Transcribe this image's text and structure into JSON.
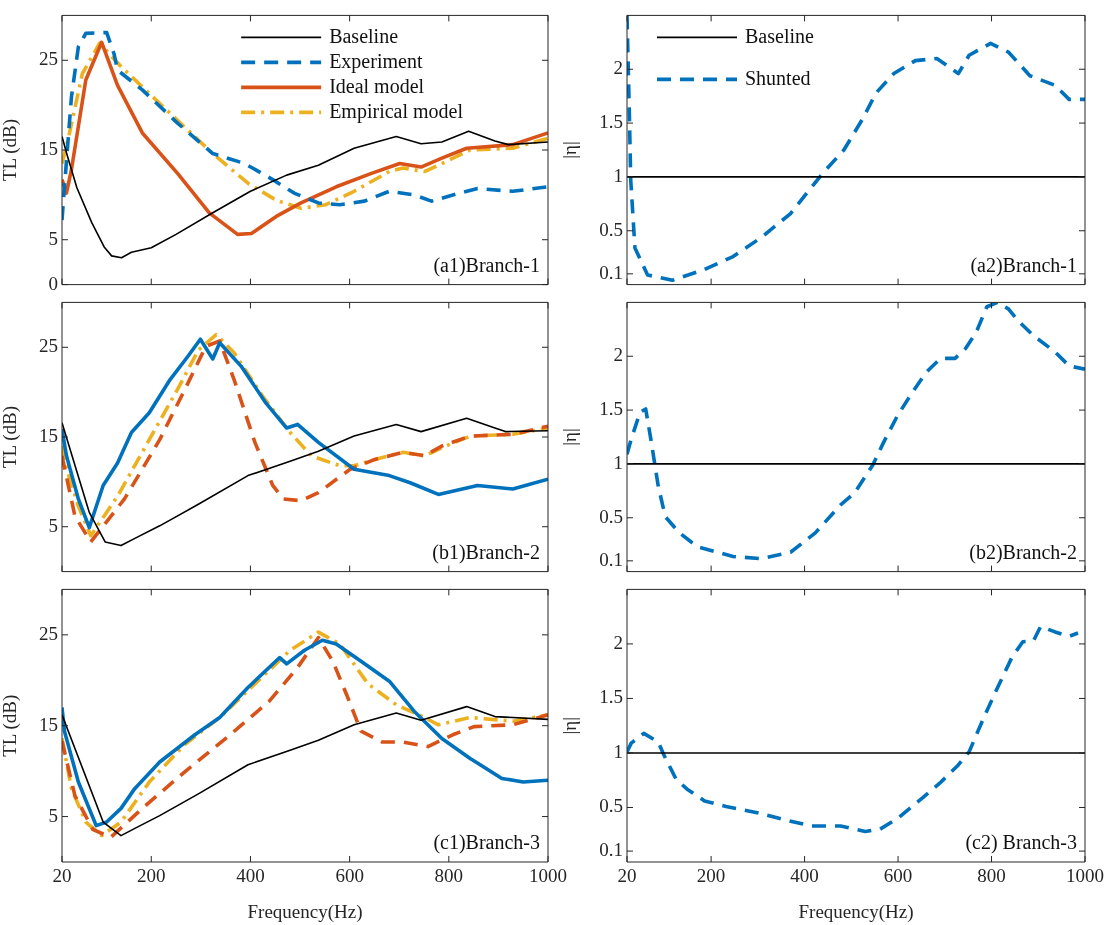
{
  "chart_data": [
    {
      "type": "line",
      "ylabel": "TL (dB)",
      "xlim": [
        20,
        1000
      ],
      "xticks": [
        20,
        200,
        400,
        600,
        800,
        1000
      ],
      "ylim": [
        0,
        30
      ],
      "yticks": [
        0,
        5,
        15,
        25
      ],
      "tick_labels": "y",
      "legend": "top right",
      "annotations": [
        "(a1)Branch-1"
      ],
      "series": [
        {
          "name": "Baseline",
          "color": "#000000",
          "line_style": "solid",
          "x": [
            20,
            30,
            50,
            80,
            105,
            120,
            140,
            160,
            200,
            250,
            324,
            400,
            473,
            537,
            609,
            694,
            744,
            786,
            840,
            893,
            920,
            1000
          ],
          "values": [
            16.5,
            14.5,
            10.8,
            6.9,
            4.2,
            3.2,
            3.0,
            3.6,
            4.1,
            5.6,
            8.0,
            10.4,
            12.2,
            13.3,
            15.2,
            16.5,
            15.7,
            15.9,
            17.1,
            16.0,
            15.6,
            15.9
          ]
        },
        {
          "name": "Experiment",
          "color": "#0072bd",
          "line_style": "dashed",
          "x": [
            20,
            25,
            39,
            53,
            68,
            110,
            125,
            132,
            182,
            253,
            324,
            388,
            445,
            488,
            537,
            580,
            630,
            680,
            730,
            765,
            822,
            858,
            929,
            1000
          ],
          "values": [
            7.2,
            10.9,
            20.9,
            26.5,
            28.0,
            28.1,
            25.7,
            23.9,
            21.7,
            18.0,
            14.6,
            13.5,
            11.7,
            10.2,
            9.1,
            8.9,
            9.3,
            10.4,
            10.0,
            9.3,
            10.2,
            10.7,
            10.4,
            10.9
          ]
        },
        {
          "name": "Ideal model",
          "color": "#d95319",
          "line_style": "solid",
          "x": [
            20,
            29,
            39,
            68,
            100,
            132,
            182,
            253,
            317,
            374,
            402,
            452,
            502,
            573,
            644,
            701,
            744,
            786,
            836,
            929,
            1000
          ],
          "values": [
            11.7,
            10.2,
            12.8,
            22.8,
            27.0,
            22.2,
            16.9,
            12.4,
            8.0,
            5.6,
            5.7,
            7.6,
            9.1,
            10.9,
            12.4,
            13.5,
            13.1,
            14.1,
            15.2,
            15.6,
            16.9
          ]
        },
        {
          "name": "Empirical model",
          "color": "#edb120",
          "line_style": "dashdot",
          "x": [
            20,
            32,
            61,
            96,
            139,
            196,
            253,
            324,
            395,
            452,
            502,
            552,
            609,
            680,
            708,
            751,
            794,
            843,
            929,
            1000
          ],
          "values": [
            13.5,
            16.1,
            23.5,
            26.9,
            24.3,
            21.3,
            18.3,
            14.6,
            11.3,
            9.4,
            8.5,
            8.9,
            10.4,
            12.6,
            13.0,
            12.6,
            13.7,
            15.0,
            15.2,
            16.3
          ]
        }
      ]
    },
    {
      "type": "line",
      "ylabel": "|η|",
      "xlim": [
        20,
        1000
      ],
      "xticks": [
        20,
        200,
        400,
        600,
        800,
        1000
      ],
      "ylim": [
        0,
        2.5
      ],
      "yticks": [
        0.1,
        0.5,
        1,
        1.5,
        2
      ],
      "tick_labels": "y",
      "legend": "top left",
      "annotations": [
        "(a2)Branch-1"
      ],
      "series": [
        {
          "name": "Baseline",
          "color": "#000000",
          "line_style": "solid",
          "x": [
            20,
            1000
          ],
          "values": [
            1,
            1
          ]
        },
        {
          "name": "Shunted",
          "color": "#0072bd",
          "line_style": "dashed",
          "x": [
            20,
            25,
            28,
            37,
            64,
            117,
            186,
            247,
            308,
            370,
            438,
            484,
            523,
            553,
            591,
            637,
            683,
            729,
            752,
            798,
            836,
            882,
            936,
            966,
            1000
          ],
          "values": [
            2.5,
            1.6,
            0.97,
            0.34,
            0.09,
            0.04,
            0.14,
            0.26,
            0.44,
            0.66,
            1.03,
            1.25,
            1.53,
            1.78,
            1.96,
            2.08,
            2.1,
            1.96,
            2.13,
            2.24,
            2.16,
            1.94,
            1.85,
            1.72,
            1.72
          ]
        }
      ]
    },
    {
      "type": "line",
      "ylabel": "TL (dB)",
      "xlim": [
        20,
        1000
      ],
      "xticks": [
        20,
        200,
        400,
        600,
        800,
        1000
      ],
      "ylim": [
        0,
        30
      ],
      "yticks": [
        5,
        15,
        25
      ],
      "tick_labels": "y",
      "annotations": [
        "(b1)Branch-2"
      ],
      "series": [
        {
          "color": "#000000",
          "line_style": "solid",
          "x": [
            20,
            75,
            107,
            139,
            167,
            217,
            295,
            395,
            480,
            537,
            609,
            694,
            744,
            836,
            893,
            914,
            1000
          ],
          "values": [
            16.6,
            6.6,
            3.3,
            2.9,
            3.7,
            5.1,
            7.5,
            10.7,
            12.3,
            13.4,
            15.1,
            16.4,
            15.6,
            17.1,
            16.0,
            15.6,
            15.7
          ]
        },
        {
          "color": "#0072bd",
          "line_style": "solid",
          "x": [
            20,
            29,
            53,
            75,
            103,
            132,
            160,
            196,
            238,
            274,
            299,
            324,
            338,
            381,
            431,
            473,
            495,
            537,
            609,
            680,
            722,
            779,
            858,
            929,
            1000
          ],
          "values": [
            15.9,
            12.9,
            8.1,
            4.9,
            9.6,
            12.1,
            15.5,
            17.7,
            21.4,
            24.0,
            25.9,
            23.7,
            25.5,
            22.9,
            18.8,
            16.0,
            16.4,
            14.4,
            11.4,
            10.7,
            9.9,
            8.6,
            9.6,
            9.2,
            10.3
          ]
        },
        {
          "color": "#d95319",
          "line_style": "dashed",
          "x": [
            20,
            46,
            78,
            146,
            217,
            274,
            310,
            338,
            367,
            409,
            445,
            466,
            502,
            537,
            601,
            651,
            708,
            751,
            786,
            843,
            929,
            1000
          ],
          "values": [
            12.9,
            6.2,
            3.3,
            8.1,
            14.7,
            21.0,
            25.1,
            25.7,
            21.4,
            14.4,
            9.6,
            8.1,
            7.9,
            8.8,
            11.4,
            12.5,
            13.3,
            12.9,
            14.0,
            15.1,
            15.3,
            16.2
          ]
        },
        {
          "color": "#edb120",
          "line_style": "dashdot",
          "x": [
            20,
            32,
            53,
            78,
            132,
            196,
            253,
            295,
            331,
            367,
            424,
            480,
            523,
            580,
            609,
            651,
            708,
            751,
            794,
            843,
            929,
            1000
          ],
          "values": [
            14.0,
            11.0,
            7.3,
            4.0,
            8.4,
            14.7,
            20.3,
            24.7,
            26.4,
            24.4,
            19.6,
            15.5,
            12.9,
            11.8,
            11.8,
            12.5,
            13.3,
            12.9,
            14.0,
            15.1,
            15.3,
            16.0
          ]
        }
      ]
    },
    {
      "type": "line",
      "ylabel": "|η|",
      "xlim": [
        20,
        1000
      ],
      "xticks": [
        20,
        200,
        400,
        600,
        800,
        1000
      ],
      "ylim": [
        0,
        2.5
      ],
      "yticks": [
        0.1,
        0.5,
        1,
        1.5,
        2
      ],
      "tick_labels": "y",
      "annotations": [
        "(b2)Branch-2"
      ],
      "series": [
        {
          "color": "#000000",
          "line_style": "solid",
          "x": [
            20,
            1000
          ],
          "values": [
            1,
            1
          ]
        },
        {
          "color": "#0072bd",
          "line_style": "dashed",
          "x": [
            20,
            29,
            48,
            60,
            71,
            87,
            102,
            132,
            171,
            247,
            308,
            370,
            423,
            477,
            507,
            546,
            569,
            599,
            630,
            660,
            691,
            722,
            744,
            767,
            790,
            813,
            836,
            859,
            890,
            936,
            966,
            1000
          ],
          "values": [
            1.09,
            1.23,
            1.48,
            1.51,
            1.23,
            0.79,
            0.51,
            0.36,
            0.23,
            0.14,
            0.12,
            0.18,
            0.36,
            0.62,
            0.73,
            0.99,
            1.2,
            1.45,
            1.66,
            1.85,
            1.98,
            1.98,
            2.07,
            2.22,
            2.46,
            2.5,
            2.44,
            2.32,
            2.19,
            2.04,
            1.91,
            1.88
          ]
        }
      ]
    },
    {
      "type": "line",
      "xlabel": "Frequency(Hz)",
      "ylabel": "TL (dB)",
      "xlim": [
        20,
        1000
      ],
      "xticks": [
        20,
        200,
        400,
        600,
        800,
        1000
      ],
      "ylim": [
        0,
        30
      ],
      "yticks": [
        5,
        15,
        25
      ],
      "annotations": [
        "(c1)Branch-3"
      ],
      "series": [
        {
          "color": "#000000",
          "line_style": "solid",
          "x": [
            20,
            103,
            139,
            167,
            217,
            295,
            395,
            480,
            537,
            609,
            694,
            744,
            836,
            893,
            1000
          ],
          "values": [
            16.2,
            4.4,
            2.9,
            3.7,
            5.1,
            7.5,
            10.7,
            12.3,
            13.4,
            15.1,
            16.4,
            15.6,
            17.1,
            16.0,
            15.7
          ]
        },
        {
          "color": "#0072bd",
          "line_style": "solid",
          "x": [
            20,
            25,
            53,
            89,
            110,
            139,
            167,
            217,
            288,
            338,
            395,
            459,
            473,
            509,
            545,
            573,
            623,
            680,
            730,
            786,
            843,
            907,
            950,
            1000
          ],
          "values": [
            17.0,
            14.4,
            8.8,
            4.0,
            4.4,
            5.9,
            8.1,
            11.0,
            14.0,
            15.9,
            19.2,
            22.5,
            21.8,
            23.3,
            24.4,
            24.0,
            22.1,
            19.9,
            16.6,
            13.6,
            11.4,
            9.2,
            8.8,
            9.0
          ]
        },
        {
          "color": "#d95319",
          "line_style": "dashed",
          "x": [
            20,
            46,
            82,
            118,
            182,
            267,
            359,
            438,
            495,
            537,
            566,
            594,
            623,
            666,
            708,
            758,
            808,
            851,
            929,
            1000
          ],
          "values": [
            13.3,
            7.3,
            3.6,
            2.7,
            5.9,
            9.9,
            14.0,
            17.7,
            21.4,
            24.7,
            22.1,
            18.4,
            14.4,
            13.2,
            13.2,
            12.7,
            14.0,
            14.9,
            15.1,
            16.2
          ]
        },
        {
          "color": "#edb120",
          "line_style": "dashdot",
          "x": [
            20,
            39,
            68,
            100,
            139,
            196,
            267,
            338,
            409,
            480,
            537,
            580,
            637,
            694,
            751,
            779,
            843,
            929,
            1000
          ],
          "values": [
            13.6,
            8.1,
            4.4,
            2.9,
            4.4,
            8.8,
            12.9,
            15.9,
            19.6,
            23.3,
            25.3,
            24.0,
            19.6,
            17.3,
            15.9,
            15.1,
            15.9,
            15.5,
            16.2
          ]
        }
      ]
    },
    {
      "type": "line",
      "xlabel": "Frequency(Hz)",
      "ylabel": "|η|",
      "xlim": [
        20,
        1000
      ],
      "xticks": [
        20,
        200,
        400,
        600,
        800,
        1000
      ],
      "ylim": [
        0,
        2.5
      ],
      "yticks": [
        0.1,
        0.5,
        1,
        1.5,
        2
      ],
      "annotations": [
        "(c2) Branch-3"
      ],
      "series": [
        {
          "color": "#000000",
          "line_style": "solid",
          "x": [
            20,
            1000
          ],
          "values": [
            1,
            1
          ]
        },
        {
          "color": "#0072bd",
          "line_style": "dashed",
          "x": [
            20,
            29,
            56,
            87,
            98,
            125,
            148,
            186,
            232,
            301,
            354,
            415,
            477,
            530,
            561,
            599,
            653,
            691,
            729,
            752,
            783,
            813,
            844,
            867,
            890,
            905,
            936,
            966,
            985
          ],
          "values": [
            1.01,
            1.09,
            1.18,
            1.1,
            0.99,
            0.76,
            0.67,
            0.56,
            0.51,
            0.45,
            0.39,
            0.33,
            0.33,
            0.28,
            0.3,
            0.4,
            0.59,
            0.73,
            0.89,
            1.01,
            1.32,
            1.6,
            1.88,
            2.02,
            2.03,
            2.16,
            2.11,
            2.07,
            2.1
          ]
        }
      ]
    }
  ]
}
